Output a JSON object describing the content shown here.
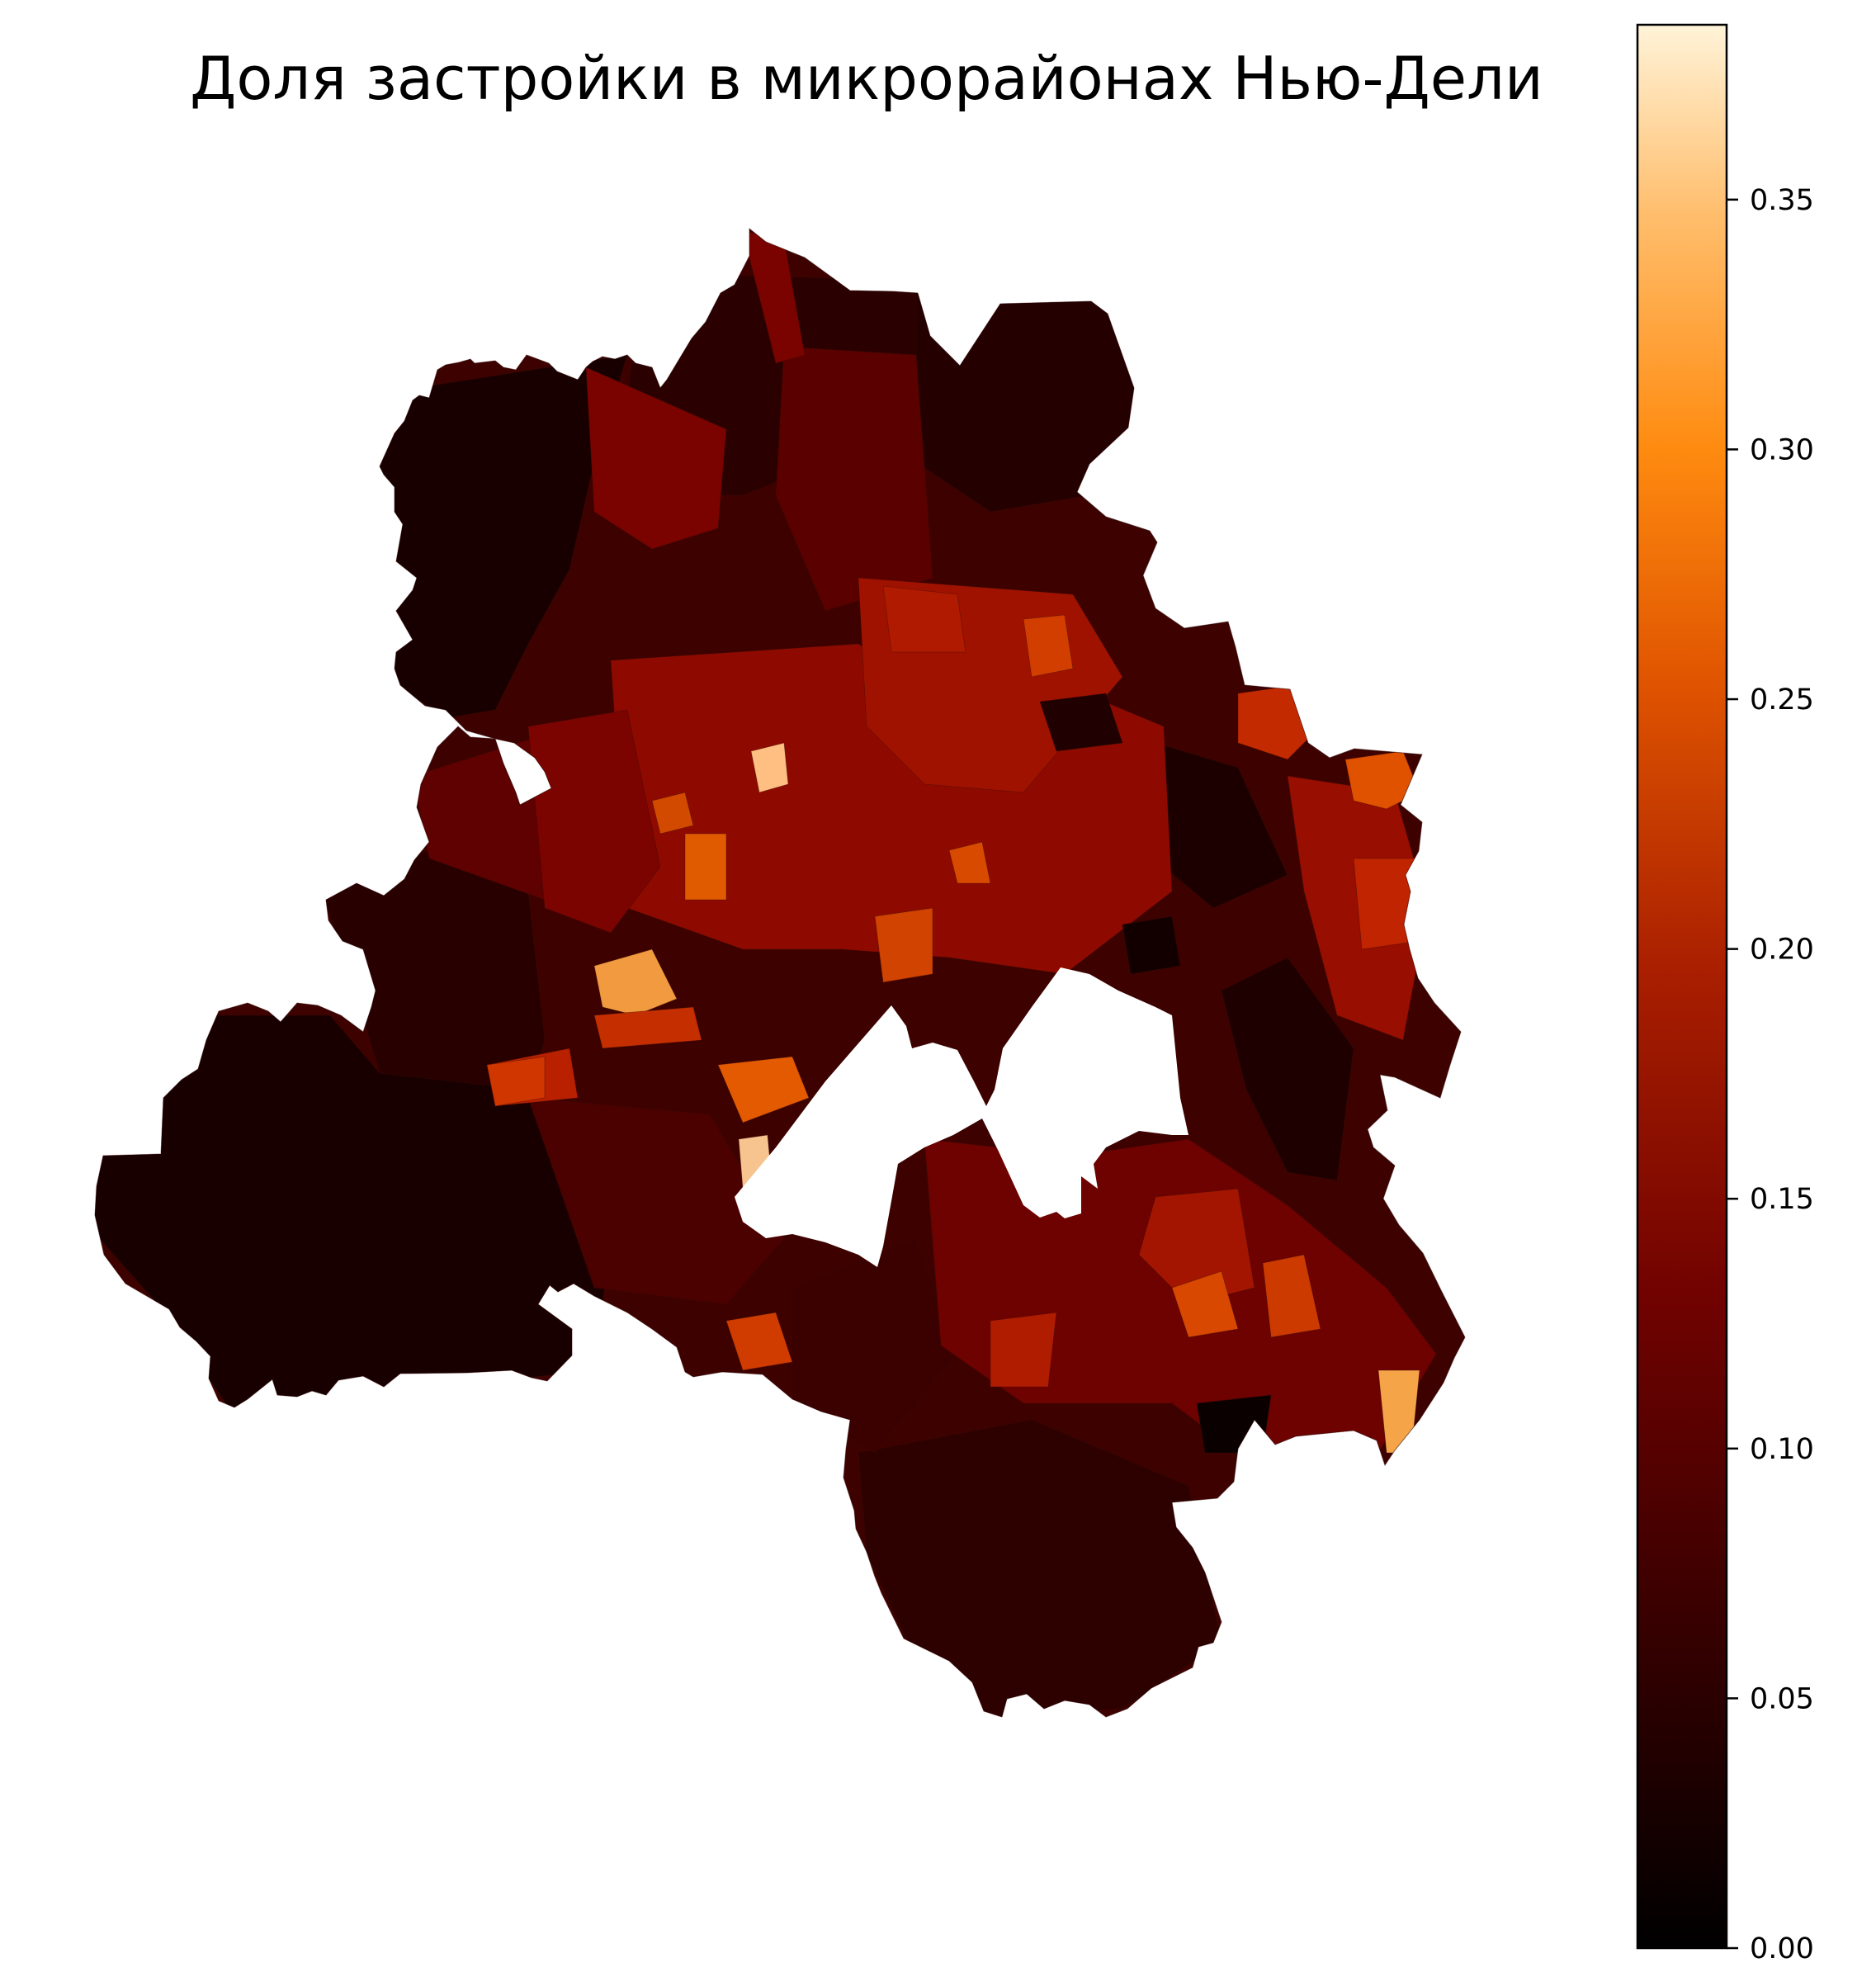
{
  "title": "Доля застройки в микрорайонах Нью-Дели",
  "colorbar": {
    "cmap": "gist_heat",
    "vmin": 0.0,
    "vmax": 0.385,
    "ticks": [
      {
        "value": 0.0,
        "label": "0.00"
      },
      {
        "value": 0.05,
        "label": "0.05"
      },
      {
        "value": 0.1,
        "label": "0.10"
      },
      {
        "value": 0.15,
        "label": "0.15"
      },
      {
        "value": 0.2,
        "label": "0.20"
      },
      {
        "value": 0.25,
        "label": "0.25"
      },
      {
        "value": 0.3,
        "label": "0.30"
      },
      {
        "value": 0.35,
        "label": "0.35"
      }
    ]
  }
}
